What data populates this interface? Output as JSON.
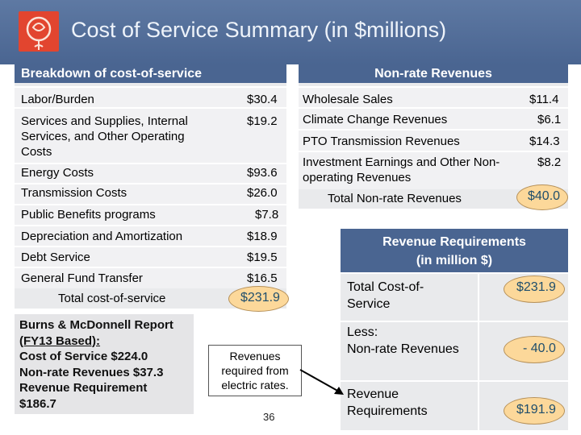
{
  "title": "Cost of Service Summary (in $millions)",
  "left_table": {
    "header": "Breakdown of cost-of-service",
    "rows": [
      {
        "label": "Labor/Burden",
        "value": "$30.4"
      },
      {
        "label": "Services and Supplies, Internal Services, and Other Operating Costs",
        "value": "$19.2"
      },
      {
        "label": "Energy Costs",
        "value": "$93.6"
      },
      {
        "label": "Transmission Costs",
        "value": "$26.0"
      },
      {
        "label": "Public Benefits programs",
        "value": "$7.8"
      },
      {
        "label": "Depreciation and Amortization",
        "value": "$18.9"
      },
      {
        "label": "Debt Service",
        "value": "$19.5"
      },
      {
        "label": "General Fund Transfer",
        "value": "$16.5"
      }
    ],
    "total_label": "Total cost-of-service",
    "total_value": "$231.9"
  },
  "right_table": {
    "header": "Non-rate Revenues",
    "rows": [
      {
        "label": "Wholesale Sales",
        "value": "$11.4"
      },
      {
        "label": "Climate Change Revenues",
        "value": "$6.1"
      },
      {
        "label": "PTO Transmission Revenues",
        "value": "$14.3"
      },
      {
        "label": "Investment Earnings and Other Non-operating Revenues",
        "value": "$8.2"
      }
    ],
    "total_label": "Total Non-rate Revenues",
    "total_value": "$40.0"
  },
  "revenue_requirements": {
    "header_line1": "Revenue Requirements",
    "header_line2": "(in million $)",
    "rows": [
      {
        "label": "Total Cost-of-Service",
        "value": "$231.9"
      },
      {
        "label_line1": "Less:",
        "label_line2": "Non-rate Revenues",
        "value": "- 40.0"
      },
      {
        "label": "Revenue Requirements",
        "value": "$191.9"
      }
    ]
  },
  "note": {
    "line1": "Burns & McDonnell Report",
    "line2": "(FY13 Based):",
    "line3": "Cost of Service $224.0",
    "line4": "Non-rate Revenues $37.3",
    "line5": "Revenue Requirement",
    "line6": "$186.7"
  },
  "callout": "Revenues required from electric rates.",
  "page_number": "36",
  "colors": {
    "header_blue": "#4a6591",
    "oval_fill": "#fcd89a",
    "table_gray": "#e9eaec"
  },
  "icons": {
    "logo": "rose-logo-icon"
  }
}
